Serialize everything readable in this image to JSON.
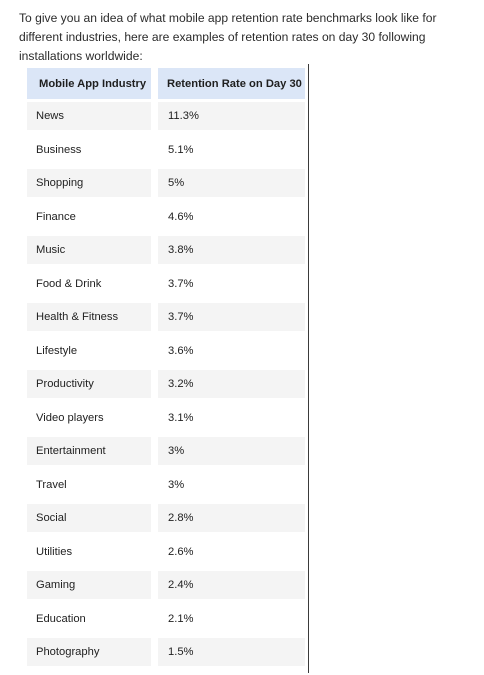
{
  "intro": {
    "text": "To give you an idea of what mobile app retention rate benchmarks look like for different industries, here are examples of retention rates on day 30 following installations worldwide:"
  },
  "table": {
    "headers": [
      "Mobile App Industry",
      "Retention Rate on Day 30"
    ],
    "rows": [
      [
        "News",
        "11.3%"
      ],
      [
        "Business",
        "5.1%"
      ],
      [
        "Shopping",
        "5%"
      ],
      [
        "Finance",
        "4.6%"
      ],
      [
        "Music",
        "3.8%"
      ],
      [
        "Food & Drink",
        "3.7%"
      ],
      [
        "Health & Fitness",
        "3.7%"
      ],
      [
        "Lifestyle",
        "3.6%"
      ],
      [
        "Productivity",
        "3.2%"
      ],
      [
        "Video players",
        "3.1%"
      ],
      [
        "Entertainment",
        "3%"
      ],
      [
        "Travel",
        "3%"
      ],
      [
        "Social",
        "2.8%"
      ],
      [
        "Utilities",
        "2.6%"
      ],
      [
        "Gaming",
        "2.4%"
      ],
      [
        "Education",
        "2.1%"
      ],
      [
        "Photography",
        "1.5%"
      ]
    ]
  },
  "colors": {
    "header_bg": "#dbe6f7",
    "row_alt_bg": "#f4f4f4",
    "text": "#222222",
    "divider": "#3a3a3a"
  }
}
